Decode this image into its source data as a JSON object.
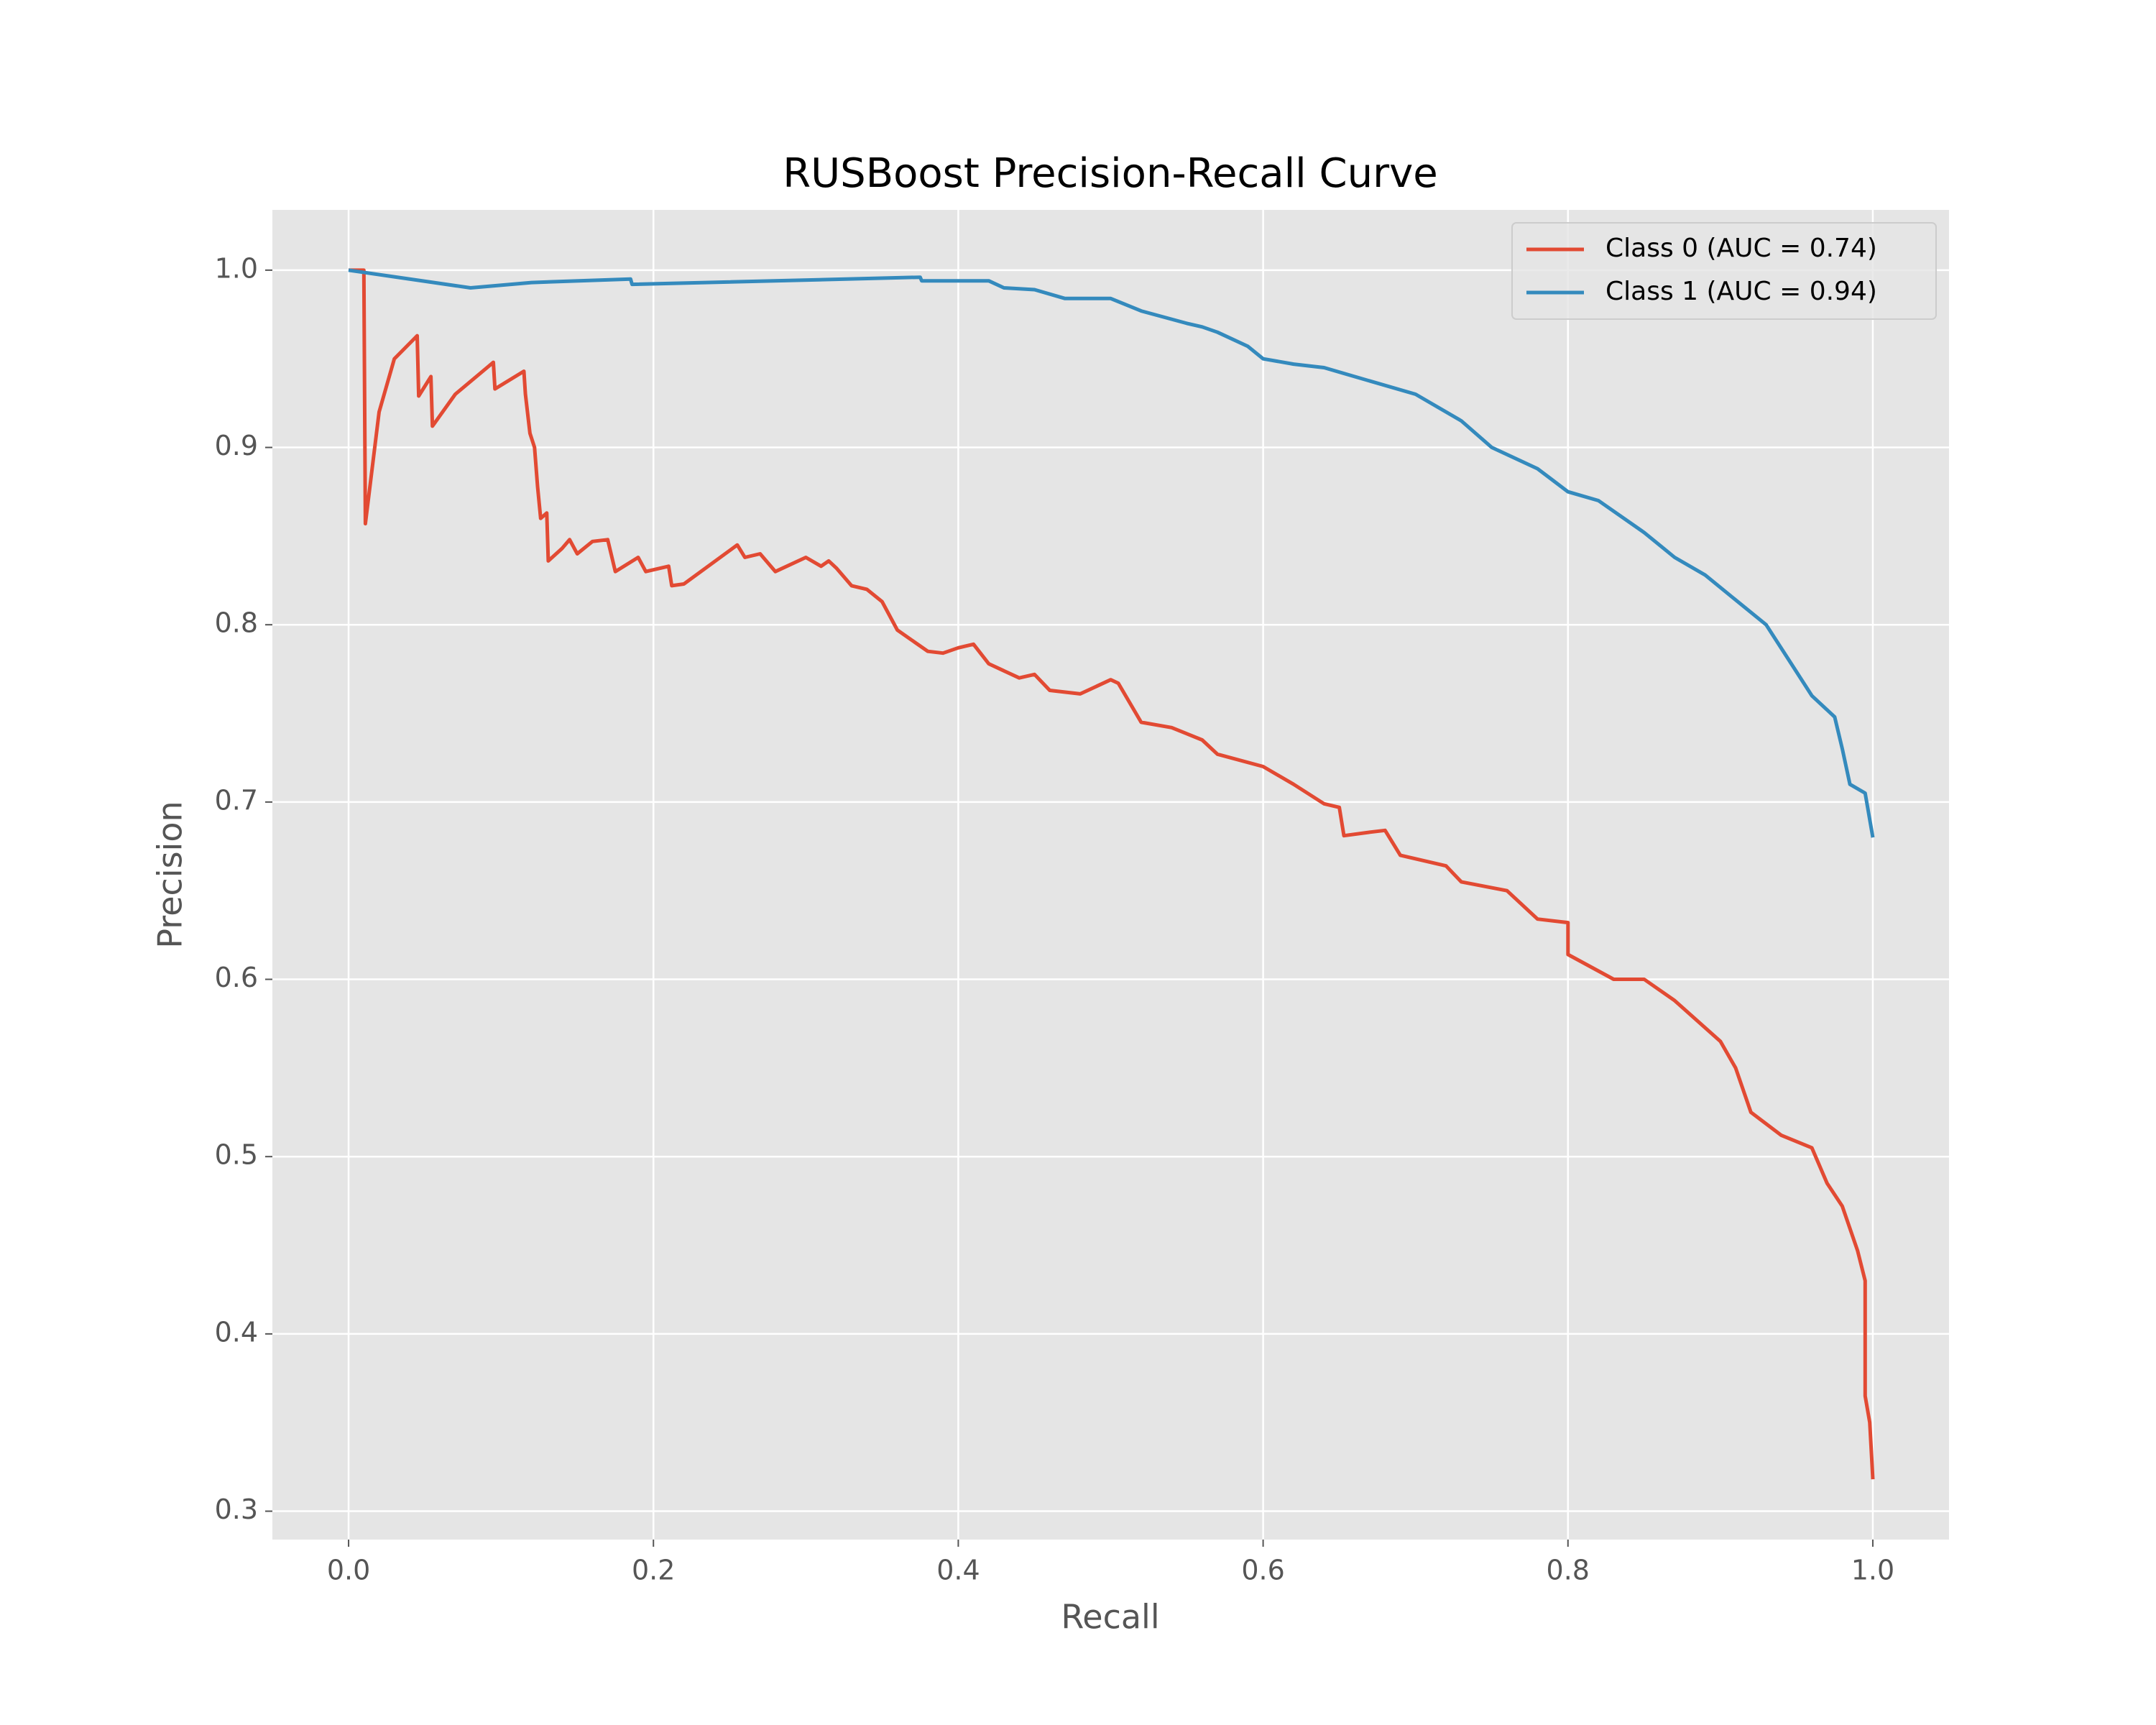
{
  "chart_data": {
    "type": "line",
    "title": "RUSBoost Precision-Recall Curve",
    "xlabel": "Recall",
    "ylabel": "Precision",
    "xlim": [
      -0.05,
      1.05
    ],
    "ylim": [
      0.284,
      1.034
    ],
    "xticks": [
      {
        "value": 0,
        "label": "0.0"
      },
      0.2,
      0.4,
      0.6,
      0.8,
      {
        "value": 1,
        "label": "1.0"
      }
    ],
    "yticks": [
      0.3,
      0.4,
      0.5,
      0.6,
      0.7,
      0.8,
      0.9,
      {
        "value": 1,
        "label": "1.0"
      }
    ],
    "grid": true,
    "legend": "upper right",
    "series": [
      {
        "name": "Class 0 (AUC = 0.74)",
        "color": "#E24A33",
        "x": [
          0.0,
          0.01,
          0.011,
          0.02,
          0.03,
          0.045,
          0.046,
          0.054,
          0.055,
          0.07,
          0.095,
          0.096,
          0.115,
          0.116,
          0.119,
          0.122,
          0.124,
          0.126,
          0.13,
          0.131,
          0.14,
          0.145,
          0.15,
          0.16,
          0.17,
          0.175,
          0.19,
          0.195,
          0.21,
          0.212,
          0.22,
          0.255,
          0.26,
          0.27,
          0.28,
          0.3,
          0.31,
          0.315,
          0.32,
          0.33,
          0.34,
          0.35,
          0.36,
          0.38,
          0.39,
          0.4,
          0.41,
          0.42,
          0.44,
          0.45,
          0.46,
          0.48,
          0.5,
          0.505,
          0.52,
          0.54,
          0.56,
          0.57,
          0.6,
          0.62,
          0.64,
          0.65,
          0.653,
          0.67,
          0.68,
          0.69,
          0.72,
          0.73,
          0.76,
          0.78,
          0.8,
          0.8,
          0.83,
          0.85,
          0.87,
          0.9,
          0.91,
          0.92,
          0.94,
          0.96,
          0.97,
          0.98,
          0.99,
          0.995,
          0.995,
          0.998,
          1.0
        ],
        "values": [
          1.0,
          1.0,
          0.857,
          0.92,
          0.95,
          0.963,
          0.929,
          0.94,
          0.912,
          0.93,
          0.948,
          0.933,
          0.943,
          0.93,
          0.908,
          0.9,
          0.878,
          0.86,
          0.863,
          0.836,
          0.843,
          0.848,
          0.84,
          0.847,
          0.848,
          0.83,
          0.838,
          0.83,
          0.833,
          0.822,
          0.823,
          0.845,
          0.838,
          0.84,
          0.83,
          0.838,
          0.833,
          0.836,
          0.832,
          0.822,
          0.82,
          0.813,
          0.797,
          0.785,
          0.784,
          0.787,
          0.789,
          0.778,
          0.77,
          0.772,
          0.763,
          0.761,
          0.769,
          0.767,
          0.745,
          0.742,
          0.735,
          0.727,
          0.72,
          0.71,
          0.699,
          0.697,
          0.681,
          0.683,
          0.684,
          0.67,
          0.664,
          0.655,
          0.65,
          0.634,
          0.632,
          0.614,
          0.6,
          0.6,
          0.588,
          0.565,
          0.55,
          0.525,
          0.512,
          0.505,
          0.485,
          0.472,
          0.447,
          0.43,
          0.365,
          0.35,
          0.318
        ]
      },
      {
        "name": "Class 1 (AUC = 0.94)",
        "color": "#348ABD",
        "x": [
          0.0,
          0.08,
          0.12,
          0.185,
          0.186,
          0.375,
          0.376,
          0.42,
          0.43,
          0.45,
          0.47,
          0.5,
          0.52,
          0.55,
          0.56,
          0.57,
          0.59,
          0.6,
          0.62,
          0.64,
          0.66,
          0.7,
          0.73,
          0.75,
          0.78,
          0.8,
          0.82,
          0.85,
          0.87,
          0.89,
          0.91,
          0.93,
          0.945,
          0.96,
          0.975,
          0.98,
          0.985,
          0.995,
          1.0
        ],
        "values": [
          1.0,
          0.99,
          0.993,
          0.995,
          0.992,
          0.996,
          0.994,
          0.994,
          0.99,
          0.989,
          0.984,
          0.984,
          0.977,
          0.97,
          0.968,
          0.965,
          0.957,
          0.95,
          0.947,
          0.945,
          0.94,
          0.93,
          0.915,
          0.9,
          0.888,
          0.875,
          0.87,
          0.852,
          0.838,
          0.828,
          0.814,
          0.8,
          0.78,
          0.76,
          0.748,
          0.73,
          0.71,
          0.705,
          0.68
        ]
      }
    ]
  }
}
